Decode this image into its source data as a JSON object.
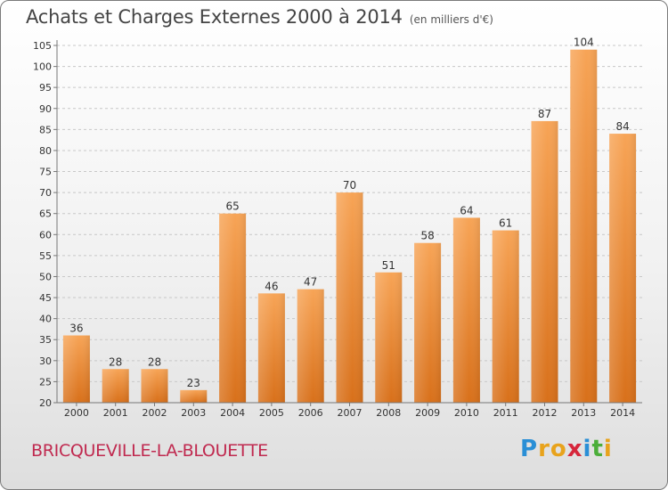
{
  "header": {
    "title": "Achats et Charges Externes 2000 à 2014",
    "unit": "(en milliers d'€)"
  },
  "footer": {
    "town": "BRICQUEVILLE-LA-BLOUETTE",
    "logo_letters": [
      "P",
      "r",
      "o",
      "x",
      "i",
      "t",
      "i"
    ],
    "logo_colors": [
      "#2a8fd6",
      "#e8a31c",
      "#e8a31c",
      "#d6263b",
      "#2a8fd6",
      "#4cae3a",
      "#e8a31c"
    ]
  },
  "chart_data": {
    "type": "bar",
    "title": "Achats et Charges Externes 2000 à 2014",
    "categories": [
      "2000",
      "2001",
      "2002",
      "2003",
      "2004",
      "2005",
      "2006",
      "2007",
      "2008",
      "2009",
      "2010",
      "2011",
      "2012",
      "2013",
      "2014"
    ],
    "values": [
      36,
      28,
      28,
      23,
      65,
      46,
      47,
      70,
      51,
      58,
      64,
      61,
      87,
      104,
      84
    ],
    "ylim": [
      20,
      105
    ],
    "ytick_step": 5,
    "grid": "horizontal dashed",
    "bar_color_top": "#f7a456",
    "bar_color_bottom": "#d8701a",
    "xlabel": "",
    "ylabel": ""
  }
}
